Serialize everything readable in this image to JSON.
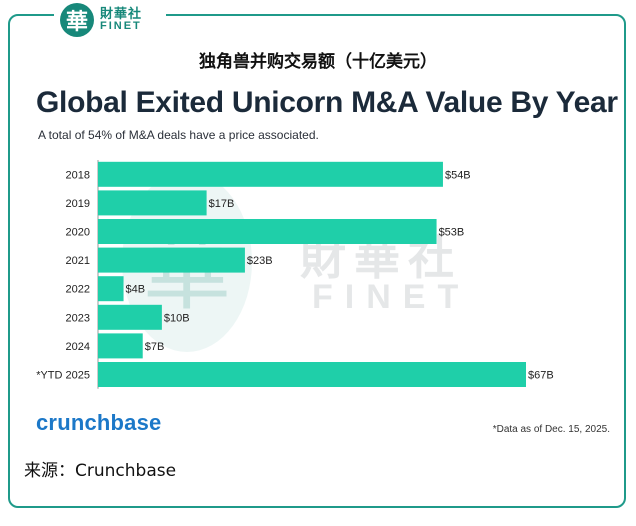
{
  "brand": {
    "seal_char": "華",
    "name_cn": "財華社",
    "name_en": "FINET"
  },
  "header": {
    "cn_title": "独角兽并购交易额（十亿美元）"
  },
  "chart_data": {
    "type": "bar",
    "orientation": "horizontal",
    "title": "Global Exited Unicorn M&A Value By Year",
    "subtitle": "A total of 54% of M&A deals have a price associated.",
    "categories": [
      "2018",
      "2019",
      "2020",
      "2021",
      "2022",
      "2023",
      "2024",
      "*YTD 2025"
    ],
    "values": [
      54,
      17,
      53,
      23,
      4,
      10,
      7,
      67
    ],
    "data_labels": [
      "$54B",
      "$17B",
      "$53B",
      "$23B",
      "$4B",
      "$10B",
      "$7B",
      "$67B"
    ],
    "unit": "$B",
    "xlim": [
      0,
      67
    ],
    "grid": false,
    "legend": "none",
    "bar_color": "#1fcfa9"
  },
  "footer": {
    "logo_text": "crunchbase",
    "note": "*Data as of Dec. 15, 2025.",
    "source": "来源：Crunchbase"
  },
  "watermark": {
    "seal_char": "華",
    "cn": "財華社",
    "en": "FINET"
  },
  "colors": {
    "accent": "#17887a",
    "bar": "#1fcfa9",
    "crunchbase": "#1c78c8"
  }
}
